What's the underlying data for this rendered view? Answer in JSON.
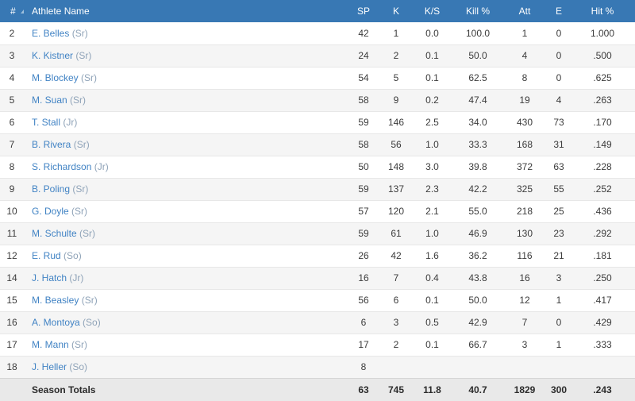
{
  "table": {
    "columns": [
      {
        "key": "number",
        "label": "#",
        "sorted": "asc"
      },
      {
        "key": "name",
        "label": "Athlete Name"
      },
      {
        "key": "sp",
        "label": "SP"
      },
      {
        "key": "k",
        "label": "K"
      },
      {
        "key": "ks",
        "label": "K/S"
      },
      {
        "key": "kill_pct",
        "label": "Kill %"
      },
      {
        "key": "att",
        "label": "Att"
      },
      {
        "key": "e",
        "label": "E"
      },
      {
        "key": "hit_pct",
        "label": "Hit %"
      }
    ],
    "rows": [
      {
        "number": "2",
        "name": "E. Belles",
        "year": "(Sr)",
        "sp": "42",
        "k": "1",
        "ks": "0.0",
        "kill_pct": "100.0",
        "att": "1",
        "e": "0",
        "hit_pct": "1.000"
      },
      {
        "number": "3",
        "name": "K. Kistner",
        "year": "(Sr)",
        "sp": "24",
        "k": "2",
        "ks": "0.1",
        "kill_pct": "50.0",
        "att": "4",
        "e": "0",
        "hit_pct": ".500"
      },
      {
        "number": "4",
        "name": "M. Blockey",
        "year": "(Sr)",
        "sp": "54",
        "k": "5",
        "ks": "0.1",
        "kill_pct": "62.5",
        "att": "8",
        "e": "0",
        "hit_pct": ".625"
      },
      {
        "number": "5",
        "name": "M. Suan",
        "year": "(Sr)",
        "sp": "58",
        "k": "9",
        "ks": "0.2",
        "kill_pct": "47.4",
        "att": "19",
        "e": "4",
        "hit_pct": ".263"
      },
      {
        "number": "6",
        "name": "T. Stall",
        "year": "(Jr)",
        "sp": "59",
        "k": "146",
        "ks": "2.5",
        "kill_pct": "34.0",
        "att": "430",
        "e": "73",
        "hit_pct": ".170"
      },
      {
        "number": "7",
        "name": "B. Rivera",
        "year": "(Sr)",
        "sp": "58",
        "k": "56",
        "ks": "1.0",
        "kill_pct": "33.3",
        "att": "168",
        "e": "31",
        "hit_pct": ".149"
      },
      {
        "number": "8",
        "name": "S. Richardson",
        "year": "(Jr)",
        "sp": "50",
        "k": "148",
        "ks": "3.0",
        "kill_pct": "39.8",
        "att": "372",
        "e": "63",
        "hit_pct": ".228"
      },
      {
        "number": "9",
        "name": "B. Poling",
        "year": "(Sr)",
        "sp": "59",
        "k": "137",
        "ks": "2.3",
        "kill_pct": "42.2",
        "att": "325",
        "e": "55",
        "hit_pct": ".252"
      },
      {
        "number": "10",
        "name": "G. Doyle",
        "year": "(Sr)",
        "sp": "57",
        "k": "120",
        "ks": "2.1",
        "kill_pct": "55.0",
        "att": "218",
        "e": "25",
        "hit_pct": ".436"
      },
      {
        "number": "11",
        "name": "M. Schulte",
        "year": "(Sr)",
        "sp": "59",
        "k": "61",
        "ks": "1.0",
        "kill_pct": "46.9",
        "att": "130",
        "e": "23",
        "hit_pct": ".292"
      },
      {
        "number": "12",
        "name": "E. Rud",
        "year": "(So)",
        "sp": "26",
        "k": "42",
        "ks": "1.6",
        "kill_pct": "36.2",
        "att": "116",
        "e": "21",
        "hit_pct": ".181"
      },
      {
        "number": "14",
        "name": "J. Hatch",
        "year": "(Jr)",
        "sp": "16",
        "k": "7",
        "ks": "0.4",
        "kill_pct": "43.8",
        "att": "16",
        "e": "3",
        "hit_pct": ".250"
      },
      {
        "number": "15",
        "name": "M. Beasley",
        "year": "(Sr)",
        "sp": "56",
        "k": "6",
        "ks": "0.1",
        "kill_pct": "50.0",
        "att": "12",
        "e": "1",
        "hit_pct": ".417"
      },
      {
        "number": "16",
        "name": "A. Montoya",
        "year": "(So)",
        "sp": "6",
        "k": "3",
        "ks": "0.5",
        "kill_pct": "42.9",
        "att": "7",
        "e": "0",
        "hit_pct": ".429"
      },
      {
        "number": "17",
        "name": "M. Mann",
        "year": "(Sr)",
        "sp": "17",
        "k": "2",
        "ks": "0.1",
        "kill_pct": "66.7",
        "att": "3",
        "e": "1",
        "hit_pct": ".333"
      },
      {
        "number": "18",
        "name": "J. Heller",
        "year": "(So)",
        "sp": "8",
        "k": "",
        "ks": "",
        "kill_pct": "",
        "att": "",
        "e": "",
        "hit_pct": ""
      }
    ],
    "totals": {
      "label": "Season Totals",
      "number": "",
      "sp": "63",
      "k": "745",
      "ks": "11.8",
      "kill_pct": "40.7",
      "att": "1829",
      "e": "300",
      "hit_pct": ".243"
    }
  },
  "icons": {
    "sort_ascending": "triangle-up"
  },
  "colors": {
    "header_bg": "#3878B4",
    "header_text": "#FFFFFF",
    "link_blue": "#4183C4",
    "class_year_text": "#8FA3B8",
    "row_stripe": "#F5F5F5",
    "row_border": "#E7E7E7",
    "totals_bg": "#E9E9E9",
    "body_text": "#3B3B3B",
    "sort_arrow": "#9FC0DC"
  }
}
